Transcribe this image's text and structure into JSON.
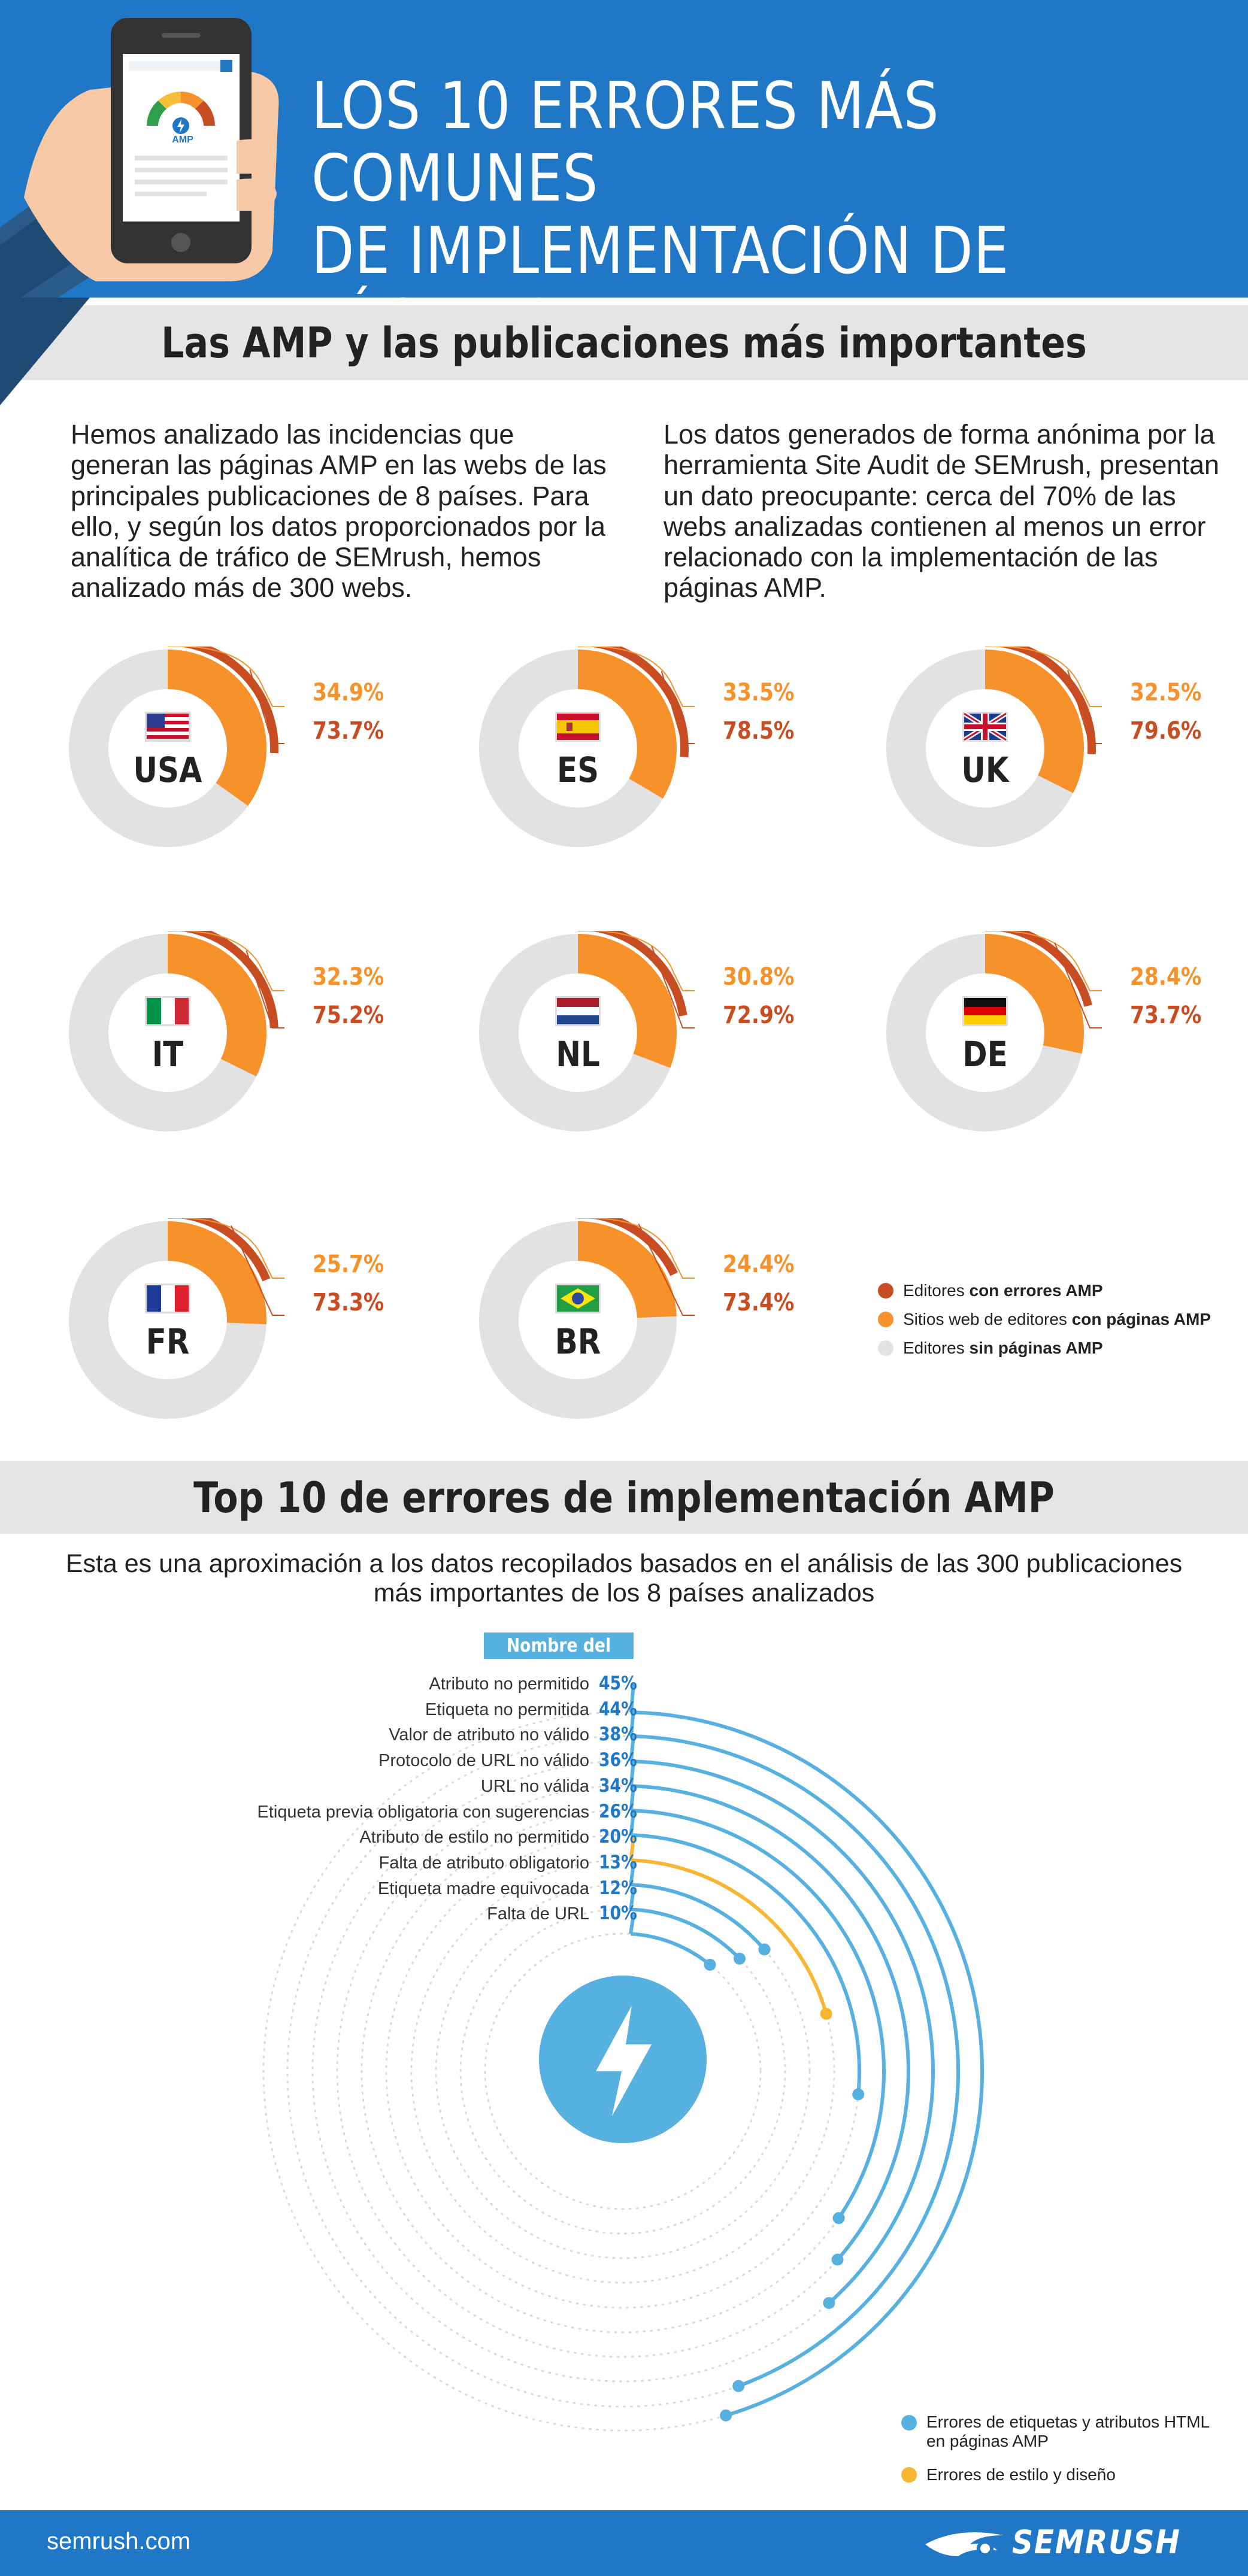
{
  "header": {
    "title_line1": "LOS 10 ERRORES MÁS COMUNES",
    "title_line2": "DE IMPLEMENTACIÓN DE PÁGINAS AMP",
    "phone_label": "AMP"
  },
  "section1": {
    "title": "Las AMP y las publicaciones más importantes",
    "intro_left": "Hemos analizado las incidencias que generan las páginas AMP en las webs de las principales publicaciones de 8 países. Para ello, y según los datos proporcionados por la analítica de tráfico de SEMrush, hemos analizado más de 300 webs.",
    "intro_right": "Los datos generados de forma anónima por la herramienta Site Audit de SEMrush, presentan un dato preocupante: cerca del 70% de las webs analizadas contienen al menos un error relacionado con la implementación de las páginas AMP."
  },
  "legend1": [
    {
      "prefix": "Editores ",
      "bold": "con errores AMP",
      "color": "#c94d22"
    },
    {
      "prefix": "Sitios web de editores ",
      "bold": "con páginas AMP",
      "color": "#f7922a"
    },
    {
      "prefix": "Editores ",
      "bold": "sin páginas AMP",
      "color": "#e2e2e2"
    }
  ],
  "section2": {
    "title": "Top 10 de errores de implementación AMP",
    "intro": "Esta es una aproximación a los datos recopilados basados en el análisis de las 300 publicaciones más importantes de los 8 países analizados",
    "column_header": "Nombre del error"
  },
  "legend2": [
    {
      "label": "Errores de etiquetas y atributos HTML en páginas AMP",
      "color": "#56b0e0"
    },
    {
      "label": "Errores de estilo y diseño",
      "color": "#f7b733"
    }
  ],
  "footer": {
    "domain": "semrush.com",
    "brand": "SEMRUSH"
  },
  "colors": {
    "blue": "#1f77c6",
    "orange": "#f7922a",
    "dark_orange": "#c94d22",
    "grey": "#e2e2e2",
    "light_blue": "#56b0e0",
    "yellow": "#f7b733"
  },
  "chart_data": [
    {
      "type": "pie",
      "title": "",
      "categories": [
        "USA",
        "ES",
        "UK",
        "IT",
        "NL",
        "DE",
        "FR",
        "BR"
      ],
      "series": [
        {
          "name": "Sitios web de editores con páginas AMP",
          "values": [
            34.9,
            33.5,
            32.5,
            32.3,
            30.8,
            28.4,
            25.7,
            24.4
          ],
          "display": [
            "34.9%",
            "33.5%",
            "32.5%",
            "32.3%",
            "30.8%",
            "28.4%",
            "25.7%",
            "24.4%"
          ]
        },
        {
          "name": "Editores con errores AMP",
          "values": [
            73.7,
            78.5,
            79.6,
            75.2,
            72.9,
            73.7,
            73.3,
            73.4
          ],
          "display": [
            "73.7%",
            "78.5%",
            "79.6%",
            "75.2%",
            "72.9%",
            "73.7%",
            "73.3%",
            "73.4%"
          ]
        }
      ]
    },
    {
      "type": "bar",
      "title": "Top 10 de errores de implementación AMP",
      "categories": [
        "Atributo no permitido",
        "Etiqueta no permitida",
        "Valor de atributo no válido",
        "Protocolo de URL no válido",
        "URL no válida",
        "Etiqueta previa obligatoria con sugerencias",
        "Atributo de estilo no permitido",
        "Falta de atributo obligatorio",
        "Etiqueta madre equivocada",
        "Falta de URL"
      ],
      "values": [
        45,
        44,
        38,
        36,
        34,
        26,
        20,
        13,
        12,
        10
      ],
      "labels": [
        "45%",
        "44%",
        "38%",
        "36%",
        "34%",
        "26%",
        "20%",
        "13%",
        "12%",
        "10%"
      ],
      "series_type": [
        "html",
        "html",
        "html",
        "html",
        "html",
        "html",
        "style",
        "html",
        "html",
        "html"
      ],
      "ylim": [
        0,
        100
      ]
    }
  ]
}
